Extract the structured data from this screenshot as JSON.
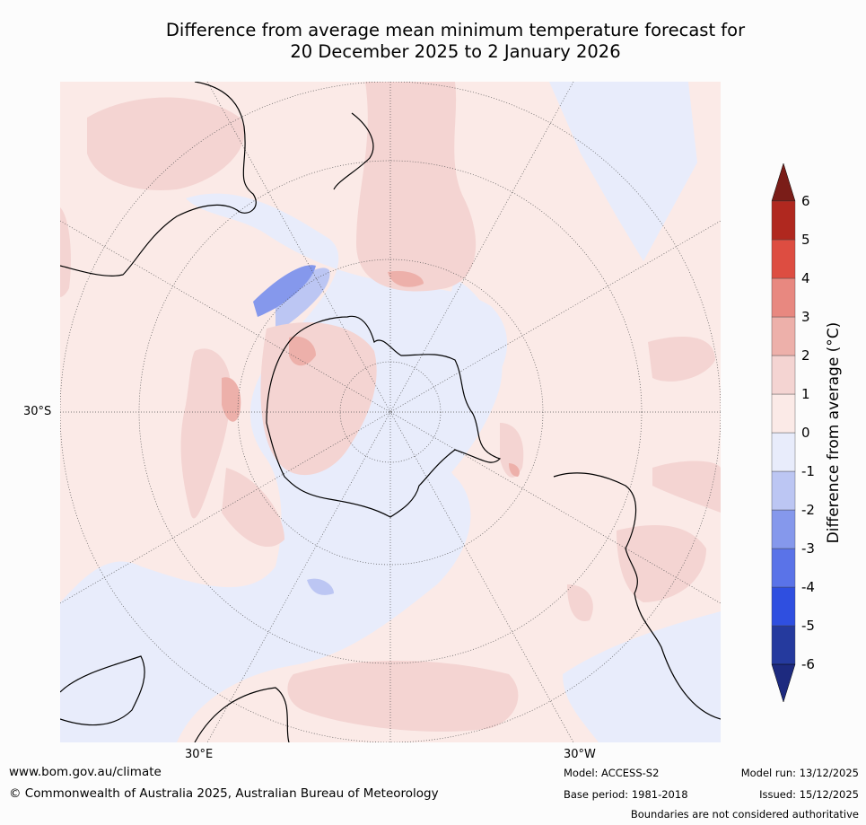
{
  "title": {
    "line1": "Difference from average mean minimum temperature forecast for",
    "line2": "20 December 2025 to 2 January 2026"
  },
  "map": {
    "projection": "south polar stereographic",
    "latitude_labels": [
      "30°S"
    ],
    "longitude_labels": [
      "30°E",
      "30°W"
    ]
  },
  "colorbar": {
    "label": "Difference from average ($^\\circ$C)",
    "label_display": "Difference from average (°C)",
    "ticks": [
      "-6",
      "-5",
      "-4",
      "-3",
      "-2",
      "-1",
      "0",
      "1",
      "2",
      "3",
      "4",
      "5",
      "6"
    ],
    "band_colors": [
      "#253a9e",
      "#2f4fe0",
      "#5a73e8",
      "#8598ec",
      "#bcc6f3",
      "#e8ecfb",
      "#fbeae7",
      "#f4d4d2",
      "#edb0aa",
      "#e88880",
      "#dd4d41",
      "#b0281f"
    ],
    "over_color": "#7a1d18",
    "under_color": "#1d2a7f"
  },
  "footer": {
    "url": "www.bom.gov.au/climate",
    "copyright": "© Commonwealth of Australia 2025, Australian Bureau of Meteorology",
    "model": "Model: ACCESS-S2",
    "base_period": "Base period: 1981-2018",
    "model_run": "Model run: 13/12/2025",
    "issued": "Issued: 15/12/2025",
    "disclaimer": "Boundaries are not considered authoritative"
  }
}
